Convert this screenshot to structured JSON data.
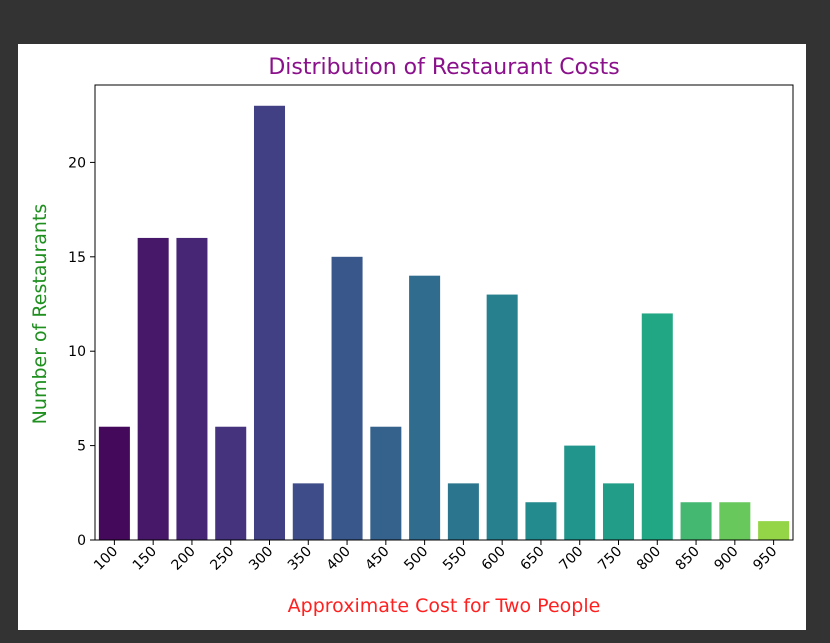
{
  "chart_data": {
    "type": "bar",
    "title": "Distribution of Restaurant Costs",
    "xlabel": "Approximate Cost for Two People",
    "ylabel": "Number of Restaurants",
    "categories": [
      "100",
      "150",
      "200",
      "250",
      "300",
      "350",
      "400",
      "450",
      "500",
      "550",
      "600",
      "650",
      "700",
      "750",
      "800",
      "850",
      "900",
      "950"
    ],
    "values": [
      6,
      16,
      16,
      6,
      23,
      3,
      15,
      6,
      14,
      3,
      13,
      2,
      5,
      3,
      12,
      2,
      2,
      1
    ],
    "ylim": [
      0,
      24.1
    ],
    "yticks": [
      0,
      5,
      10,
      15,
      20
    ],
    "grid": false,
    "palette": "viridis",
    "colors": {
      "title": "#8b108b",
      "xlabel": "#ff2020",
      "ylabel": "#1f8f1f"
    }
  }
}
